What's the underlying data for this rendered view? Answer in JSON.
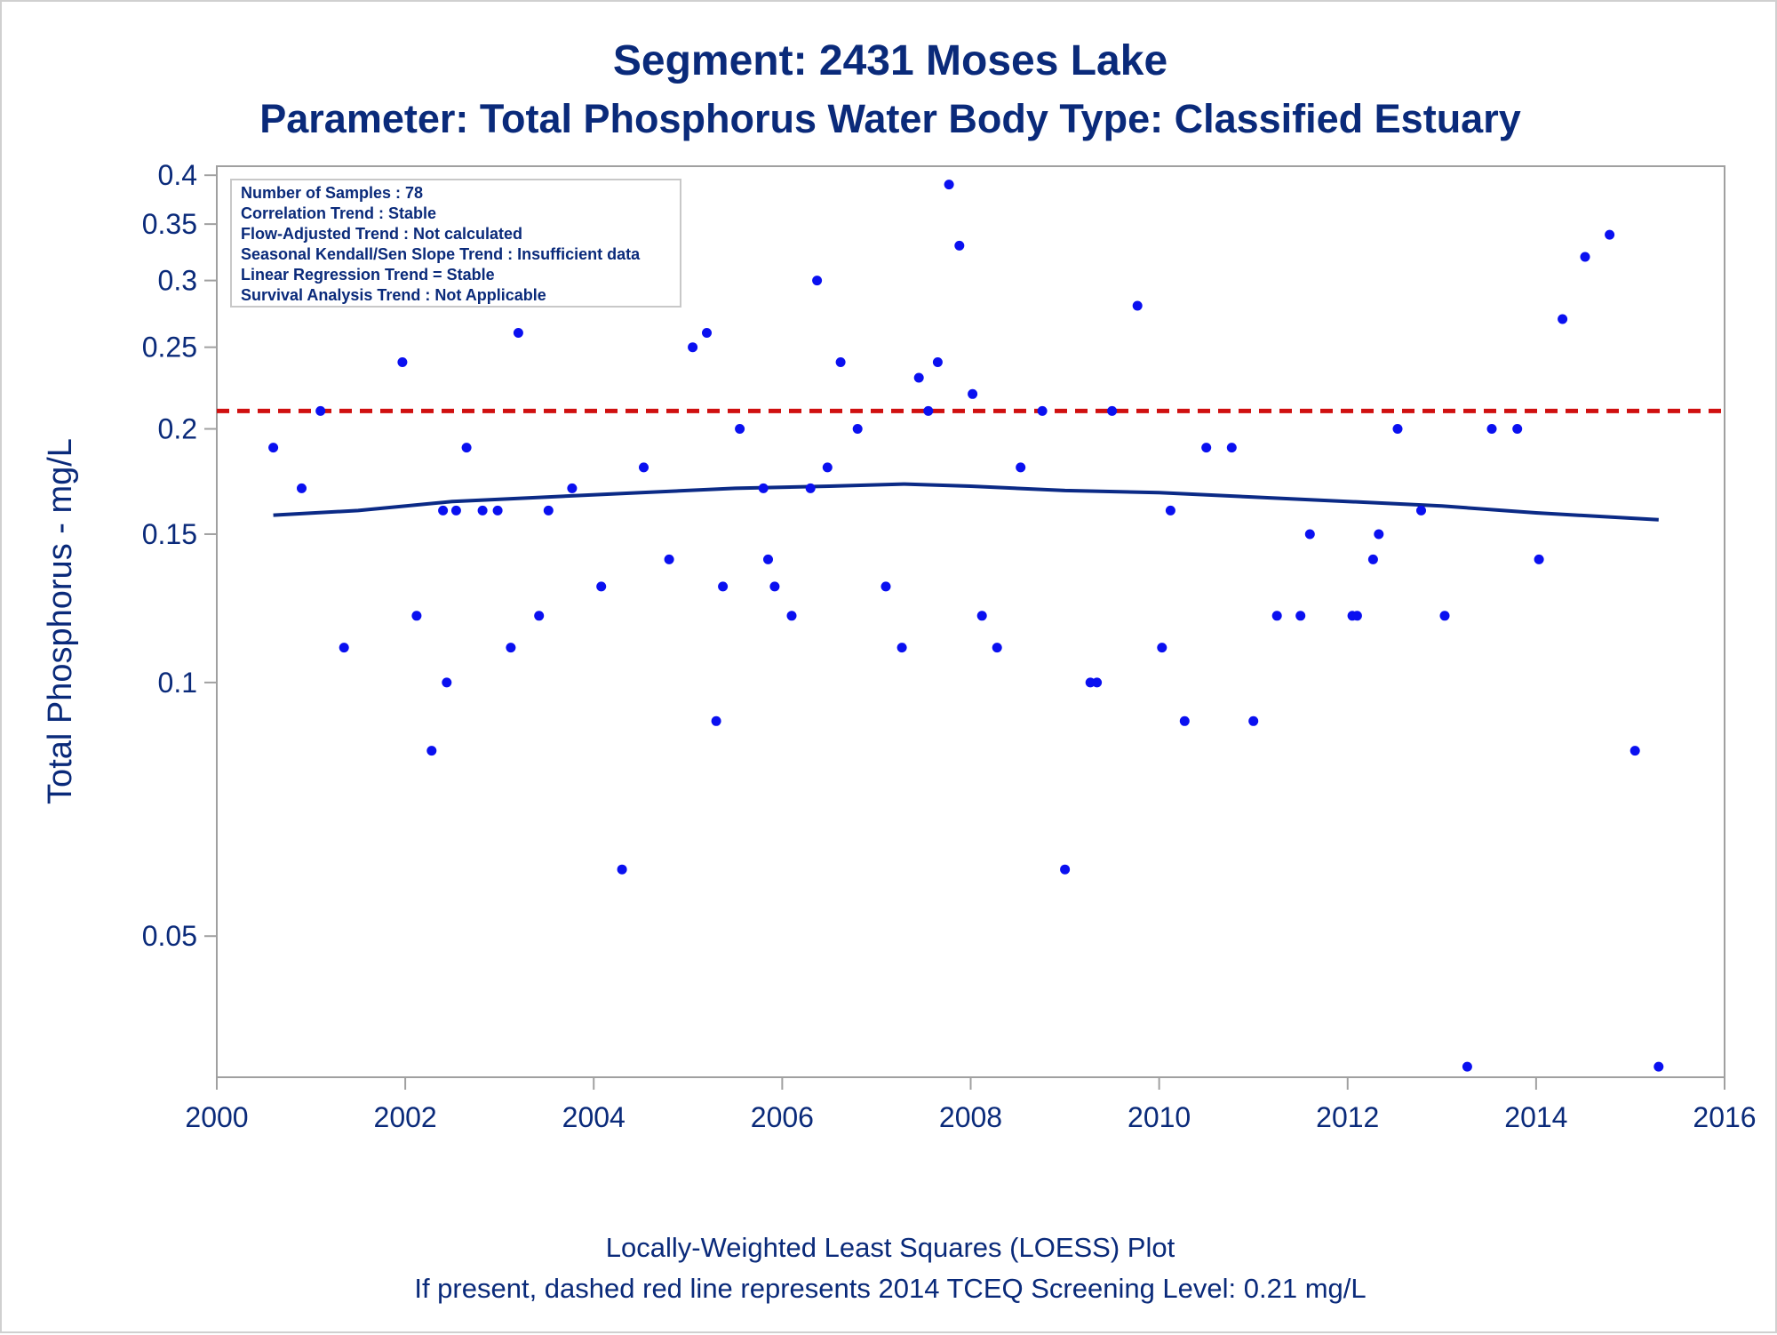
{
  "title": "Segment: 2431  Moses Lake",
  "subtitle": "Parameter: Total Phosphorus   Water Body Type: Classified Estuary",
  "footnote_1": "Locally-Weighted Least Squares (LOESS) Plot",
  "footnote_2": "If present, dashed red line represents 2014 TCEQ Screening Level: 0.21 mg/L",
  "info_box": [
    "Number of Samples : 78",
    "Correlation Trend : Stable",
    "Flow-Adjusted Trend : Not calculated",
    "Seasonal Kendall/Sen Slope Trend : Insufficient data",
    "Linear Regression Trend = Stable",
    "Survival Analysis Trend : Not Applicable"
  ],
  "colors": {
    "text": "#0a2a7a",
    "points": "#0a10f0",
    "loess": "#0b2a86",
    "screening": "#d01010",
    "axis": "#a0a0a0"
  },
  "chart_data": {
    "type": "scatter",
    "title": "Segment: 2431  Moses Lake",
    "subtitle": "Parameter: Total Phosphorus   Water Body Type: Classified Estuary",
    "xlabel": "",
    "ylabel": "Total Phosphorus - mg/L",
    "x_scale": "linear",
    "y_scale": "log",
    "xlim": [
      2000,
      2016
    ],
    "ylim": [
      0.034,
      0.41
    ],
    "x_ticks": [
      2000,
      2002,
      2004,
      2006,
      2008,
      2010,
      2012,
      2014,
      2016
    ],
    "y_ticks": [
      0.05,
      0.1,
      0.15,
      0.2,
      0.25,
      0.3,
      0.35,
      0.4
    ],
    "y_tick_labels": [
      "0.05",
      "0.1",
      "0.15",
      "0.2",
      "0.25",
      "0.3",
      "0.35",
      "0.4"
    ],
    "grid": false,
    "screening_level": 0.21,
    "points": [
      [
        2000.6,
        0.19
      ],
      [
        2000.9,
        0.17
      ],
      [
        2001.1,
        0.21
      ],
      [
        2001.35,
        0.11
      ],
      [
        2001.97,
        0.24
      ],
      [
        2002.12,
        0.12
      ],
      [
        2002.28,
        0.083
      ],
      [
        2002.4,
        0.16
      ],
      [
        2002.44,
        0.1
      ],
      [
        2002.54,
        0.16
      ],
      [
        2002.65,
        0.19
      ],
      [
        2002.82,
        0.16
      ],
      [
        2002.98,
        0.16
      ],
      [
        2003.12,
        0.11
      ],
      [
        2003.2,
        0.26
      ],
      [
        2003.42,
        0.12
      ],
      [
        2003.52,
        0.16
      ],
      [
        2003.77,
        0.17
      ],
      [
        2004.08,
        0.13
      ],
      [
        2004.3,
        0.06
      ],
      [
        2004.53,
        0.18
      ],
      [
        2004.8,
        0.14
      ],
      [
        2005.05,
        0.25
      ],
      [
        2005.2,
        0.26
      ],
      [
        2005.3,
        0.09
      ],
      [
        2005.37,
        0.13
      ],
      [
        2005.55,
        0.2
      ],
      [
        2005.8,
        0.17
      ],
      [
        2005.85,
        0.14
      ],
      [
        2005.92,
        0.13
      ],
      [
        2006.1,
        0.12
      ],
      [
        2006.3,
        0.17
      ],
      [
        2006.37,
        0.3
      ],
      [
        2006.48,
        0.18
      ],
      [
        2006.62,
        0.24
      ],
      [
        2006.8,
        0.2
      ],
      [
        2007.1,
        0.13
      ],
      [
        2007.27,
        0.11
      ],
      [
        2007.45,
        0.23
      ],
      [
        2007.55,
        0.21
      ],
      [
        2007.65,
        0.24
      ],
      [
        2007.77,
        0.39
      ],
      [
        2007.88,
        0.33
      ],
      [
        2008.02,
        0.22
      ],
      [
        2008.12,
        0.12
      ],
      [
        2008.28,
        0.11
      ],
      [
        2008.53,
        0.18
      ],
      [
        2008.76,
        0.21
      ],
      [
        2009.0,
        0.06
      ],
      [
        2009.27,
        0.1
      ],
      [
        2009.34,
        0.1
      ],
      [
        2009.5,
        0.21
      ],
      [
        2009.77,
        0.28
      ],
      [
        2010.03,
        0.11
      ],
      [
        2010.12,
        0.16
      ],
      [
        2010.27,
        0.09
      ],
      [
        2010.5,
        0.19
      ],
      [
        2010.77,
        0.19
      ],
      [
        2011.0,
        0.09
      ],
      [
        2011.25,
        0.12
      ],
      [
        2011.5,
        0.12
      ],
      [
        2011.6,
        0.15
      ],
      [
        2012.05,
        0.12
      ],
      [
        2012.1,
        0.12
      ],
      [
        2012.27,
        0.14
      ],
      [
        2012.33,
        0.15
      ],
      [
        2012.53,
        0.2
      ],
      [
        2012.78,
        0.16
      ],
      [
        2013.03,
        0.12
      ],
      [
        2013.27,
        0.035
      ],
      [
        2013.53,
        0.2
      ],
      [
        2013.8,
        0.2
      ],
      [
        2014.03,
        0.14
      ],
      [
        2014.28,
        0.27
      ],
      [
        2014.52,
        0.32
      ],
      [
        2014.78,
        0.34
      ],
      [
        2015.05,
        0.083
      ],
      [
        2015.3,
        0.035
      ]
    ],
    "loess": [
      [
        2000.6,
        0.158
      ],
      [
        2001.5,
        0.16
      ],
      [
        2002.5,
        0.164
      ],
      [
        2003.5,
        0.166
      ],
      [
        2004.5,
        0.168
      ],
      [
        2005.5,
        0.17
      ],
      [
        2006.5,
        0.171
      ],
      [
        2007.3,
        0.172
      ],
      [
        2008.0,
        0.171
      ],
      [
        2009.0,
        0.169
      ],
      [
        2010.0,
        0.168
      ],
      [
        2011.0,
        0.166
      ],
      [
        2012.0,
        0.164
      ],
      [
        2013.0,
        0.162
      ],
      [
        2014.0,
        0.159
      ],
      [
        2015.3,
        0.156
      ]
    ]
  }
}
